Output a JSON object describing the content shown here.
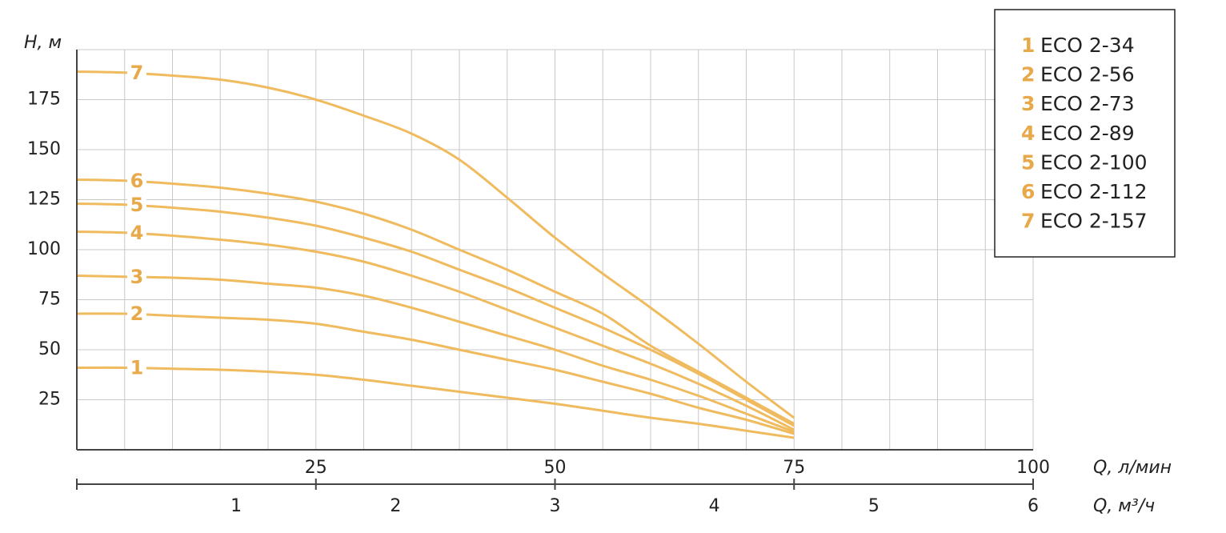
{
  "chart_data": {
    "type": "line",
    "y_label": "H, м",
    "x_label": "Q, л/мин",
    "x2_label": "Q, м³/ч",
    "x": [
      0,
      5,
      10,
      15,
      20,
      25,
      30,
      35,
      40,
      45,
      50,
      55,
      60,
      65,
      70,
      75
    ],
    "series": [
      {
        "label": "1",
        "name": "ECO 2-34",
        "color": "#f0bb5e",
        "values": [
          41,
          41,
          40.5,
          40,
          39,
          37.5,
          35,
          32,
          29,
          26,
          23,
          19.5,
          16,
          13,
          9.5,
          6
        ]
      },
      {
        "label": "2",
        "name": "ECO 2-56",
        "color": "#f0bb5e",
        "values": [
          68,
          68,
          67,
          66,
          65,
          63,
          59,
          55,
          50,
          45,
          40,
          34,
          28,
          21,
          15,
          8
        ]
      },
      {
        "label": "3",
        "name": "ECO 2-73",
        "color": "#f0bb5e",
        "values": [
          87,
          86.5,
          86,
          85,
          83,
          81,
          77,
          71,
          64,
          57,
          50,
          42,
          35,
          27,
          18,
          9
        ]
      },
      {
        "label": "4",
        "name": "ECO 2-89",
        "color": "#f0bb5e",
        "values": [
          109,
          108.5,
          107,
          105,
          102.5,
          99,
          94,
          87,
          79,
          70,
          61,
          52,
          43,
          33,
          22,
          10
        ]
      },
      {
        "label": "5",
        "name": "ECO 2-100",
        "color": "#f0bb5e",
        "values": [
          123,
          122.5,
          121,
          119,
          116,
          112,
          106,
          99,
          90,
          81,
          71,
          61,
          50,
          38,
          25,
          12
        ]
      },
      {
        "label": "6",
        "name": "ECO 2-112",
        "color": "#f0bb5e",
        "values": [
          135,
          134.5,
          133,
          131,
          128,
          124,
          118,
          110,
          100,
          90,
          79,
          68,
          52,
          39,
          26,
          13
        ]
      },
      {
        "label": "7",
        "name": "ECO 2-157",
        "color": "#f0bb5e",
        "values": [
          189,
          188.5,
          187,
          185,
          181,
          175,
          167,
          158,
          145,
          126,
          106,
          88,
          71,
          53,
          34,
          16
        ]
      }
    ],
    "xlim": [
      0,
      100
    ],
    "xticks": [
      25,
      50,
      75,
      100
    ],
    "xgrid": [
      5,
      10,
      15,
      20,
      25,
      30,
      35,
      40,
      45,
      50,
      55,
      60,
      65,
      70,
      75,
      80,
      85,
      90,
      95,
      100
    ],
    "x2lim": [
      0,
      6
    ],
    "x2ticks": [
      1,
      2,
      3,
      4,
      5,
      6
    ],
    "ylim": [
      0,
      200
    ],
    "yticks": [
      25,
      50,
      75,
      100,
      125,
      150,
      175,
      200
    ],
    "ytick_labels_hidden_at": 200,
    "grid": true,
    "legend": "top-right",
    "label_color": "#e8a94a"
  }
}
